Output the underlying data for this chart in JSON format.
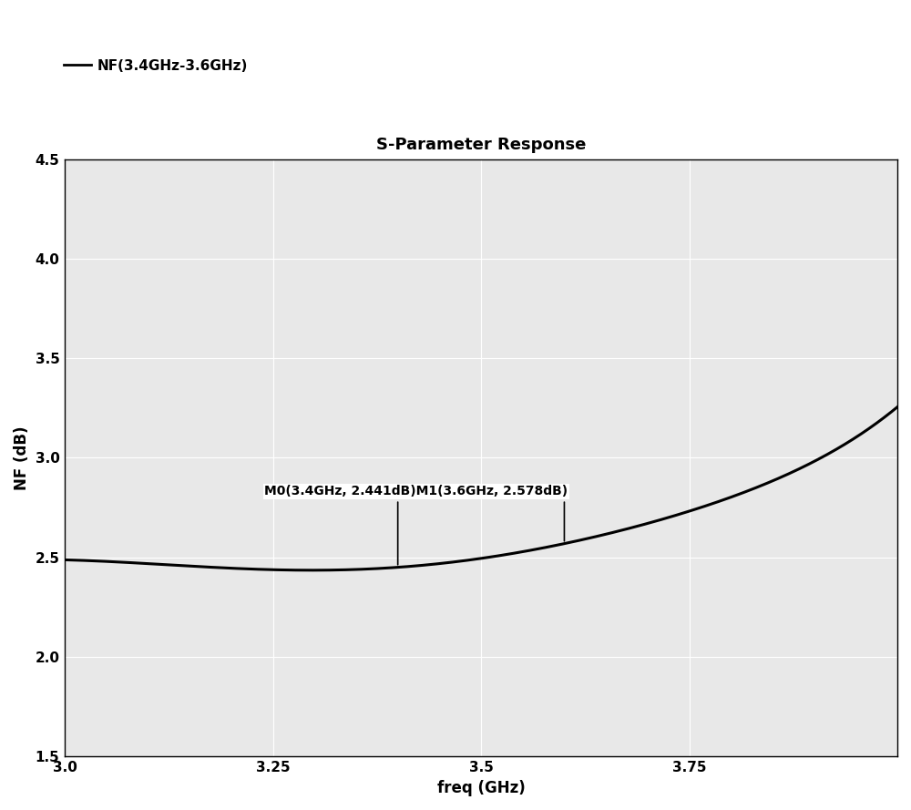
{
  "title": "S-Parameter Response",
  "xlabel": "freq (GHz)",
  "ylabel": "NF (dB)",
  "legend_label": "NF(3.4GHz-3.6GHz)",
  "xlim": [
    3.0,
    4.0
  ],
  "ylim": [
    1.5,
    4.5
  ],
  "xticks": [
    3.0,
    3.25,
    3.5,
    3.75,
    4.0
  ],
  "xtick_labels": [
    "3.0",
    "3.25",
    "3.5",
    "3.75",
    ""
  ],
  "yticks": [
    1.5,
    2.0,
    2.5,
    3.0,
    3.5,
    4.0,
    4.5
  ],
  "ytick_labels": [
    "1.5",
    "2.0",
    "2.5",
    "3.0",
    "3.5",
    "4.0",
    "4.5"
  ],
  "marker0_freq": 3.4,
  "marker0_nf": 2.441,
  "marker0_label": "M0(3.4GHz, 2.441dB)",
  "marker1_freq": 3.6,
  "marker1_nf": 2.578,
  "marker1_label": "M1(3.6GHz, 2.578dB)",
  "combined_annotation": "M0(3.4GHz, 2.441dB)M1(3.6GHz, 2.578dB)",
  "line_color": "#000000",
  "background_color": "#ffffff",
  "plot_bg_color": "#e8e8e8",
  "grid_color": "#ffffff",
  "title_fontsize": 13,
  "label_fontsize": 12,
  "legend_fontsize": 11,
  "annotation_fontsize": 10,
  "curve_x": [
    3.0,
    3.05,
    3.1,
    3.15,
    3.2,
    3.25,
    3.3,
    3.35,
    3.4,
    3.45,
    3.5,
    3.55,
    3.6,
    3.65,
    3.7,
    3.75,
    3.8,
    3.85,
    3.9,
    3.95,
    4.0
  ],
  "curve_y": [
    2.49,
    2.476,
    2.464,
    2.454,
    2.448,
    2.444,
    2.442,
    2.441,
    2.441,
    2.443,
    2.5,
    2.536,
    2.578,
    2.624,
    2.672,
    2.724,
    2.79,
    2.88,
    2.99,
    3.11,
    3.25
  ]
}
